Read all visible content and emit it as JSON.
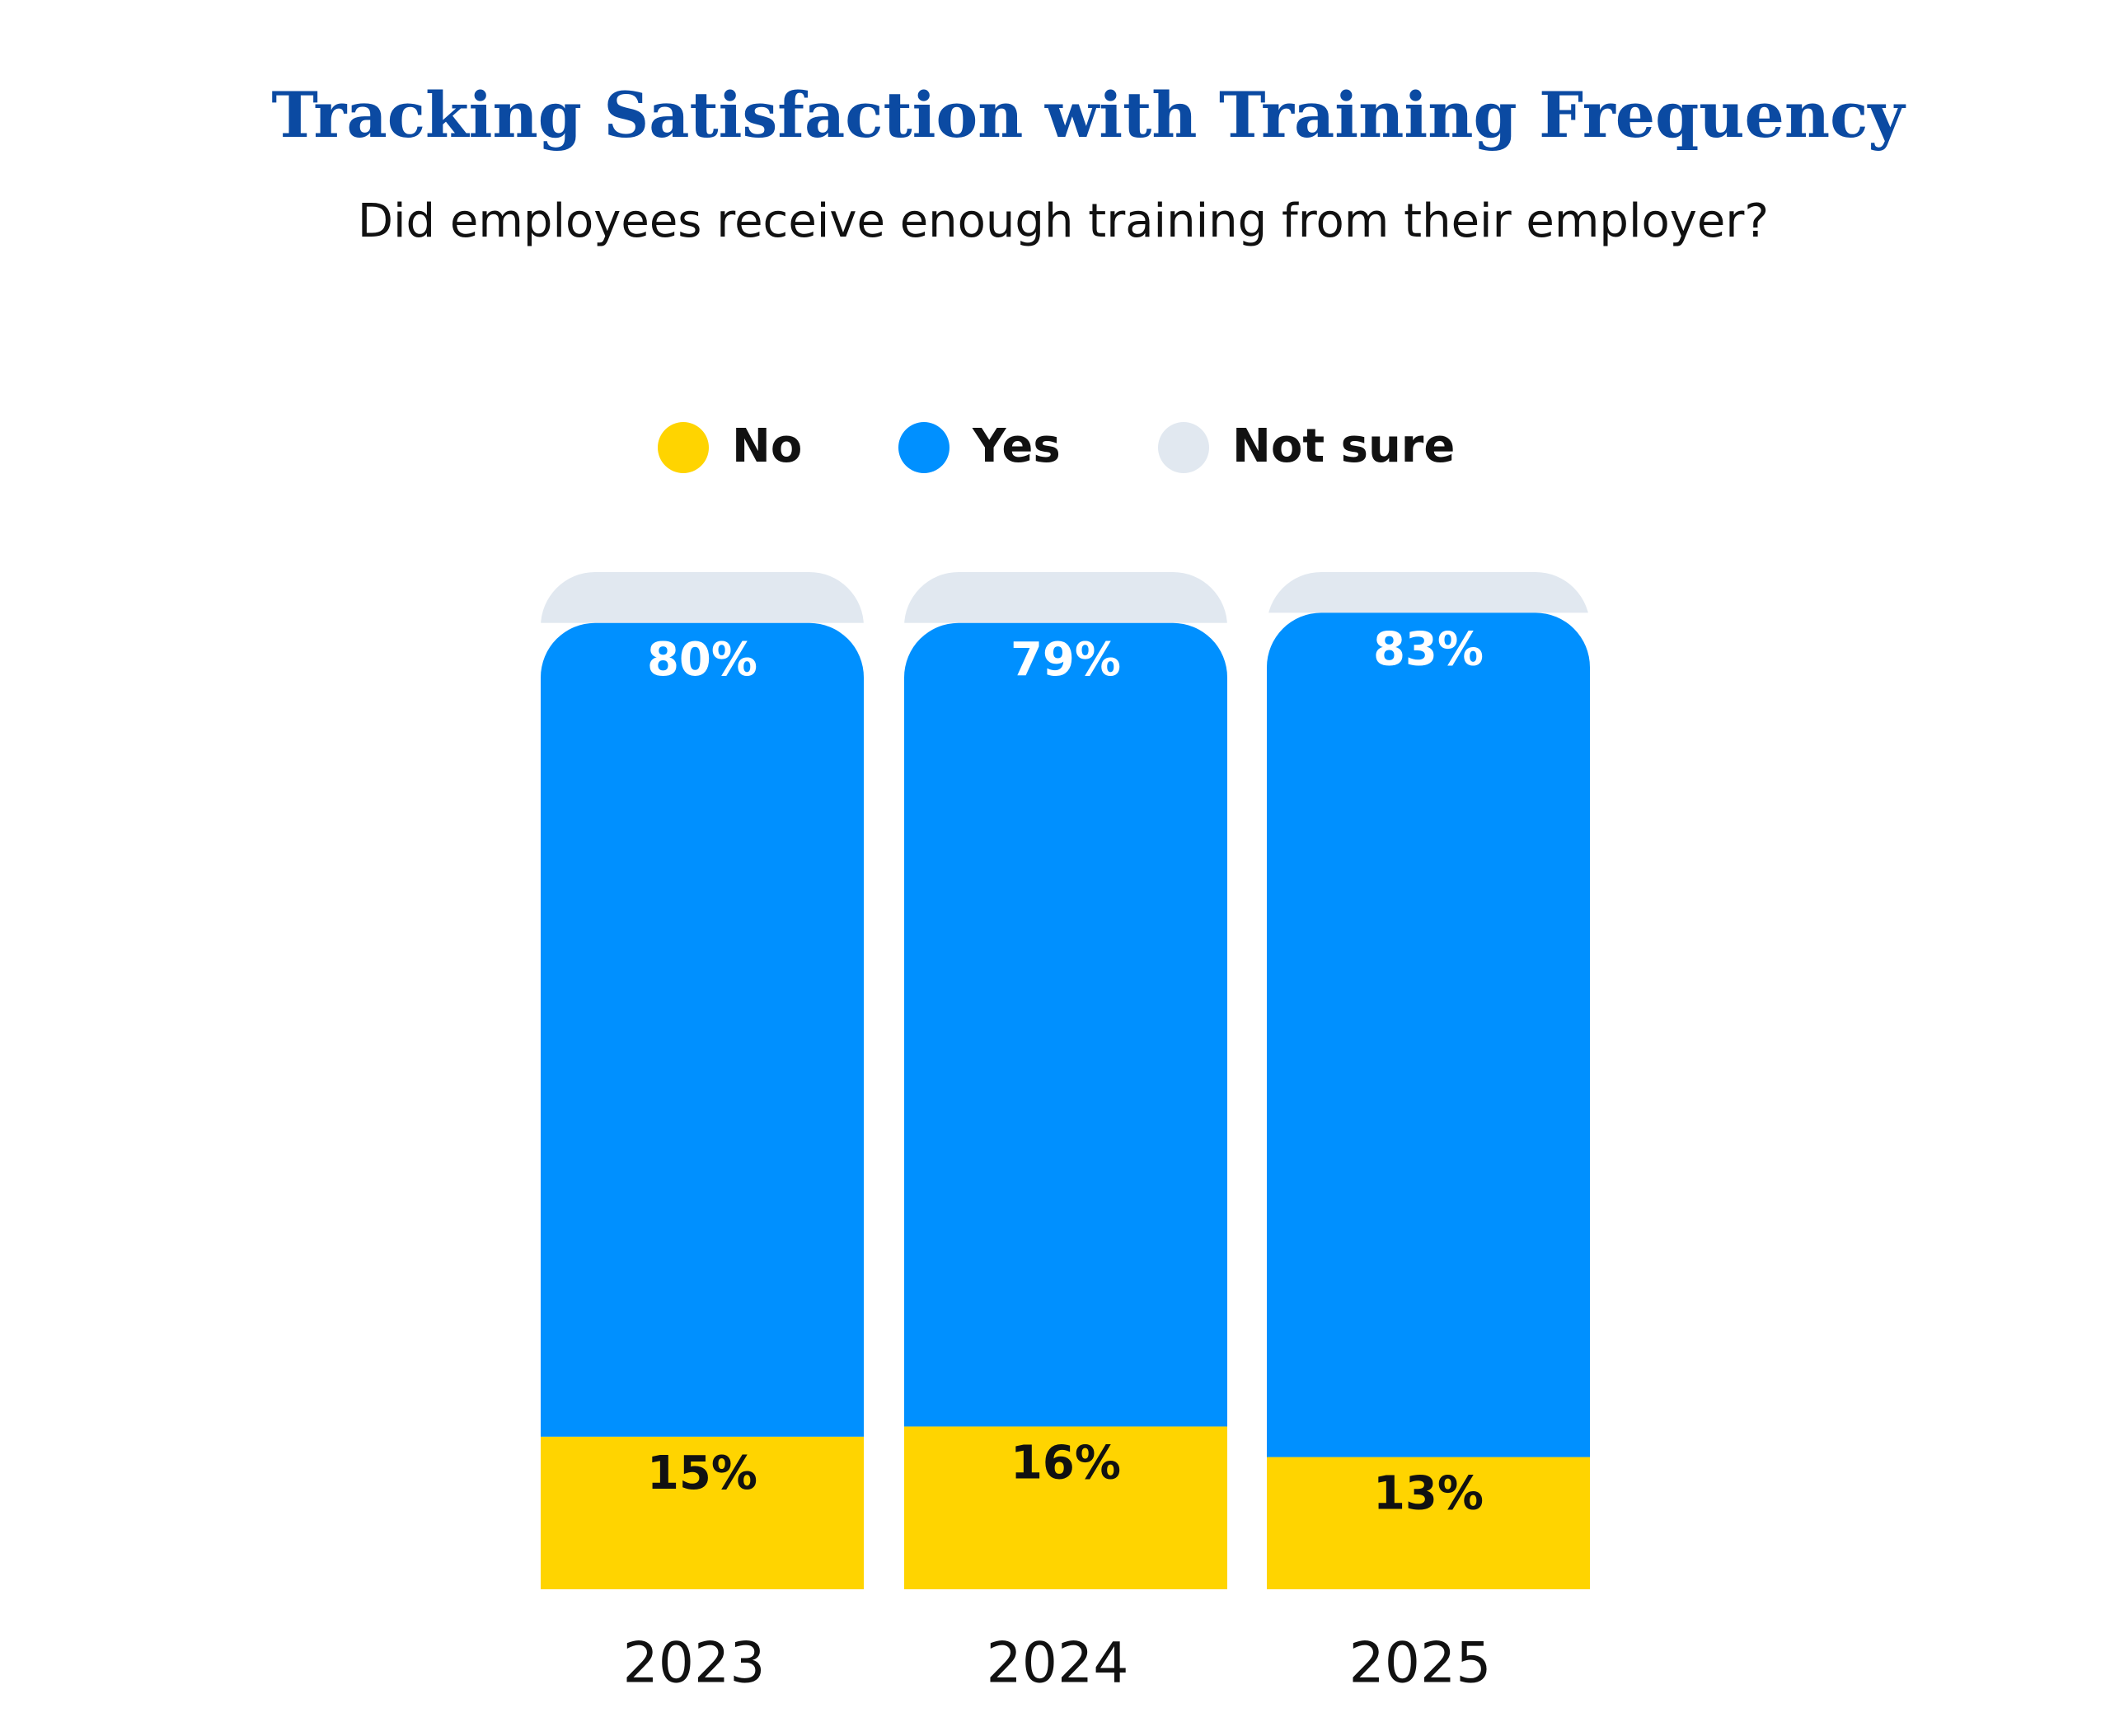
{
  "chart_data": {
    "type": "stacked-bar",
    "title": "Tracking Satisfaction with Training Frequency",
    "subtitle": "Did employees receive enough training from their employer?",
    "categories": [
      "2023",
      "2024",
      "2025"
    ],
    "series": [
      {
        "name": "No",
        "color": "#ffd400",
        "values": [
          15,
          16,
          13
        ],
        "value_labels": [
          "15%",
          "16%",
          "13%"
        ]
      },
      {
        "name": "Yes",
        "color": "#0090ff",
        "values": [
          80,
          79,
          83
        ],
        "value_labels": [
          "80%",
          "79%",
          "83%"
        ]
      },
      {
        "name": "Not sure",
        "color": "#e1e8f0",
        "values": [
          5,
          5,
          4
        ]
      }
    ],
    "ylim": [
      0,
      100
    ]
  }
}
